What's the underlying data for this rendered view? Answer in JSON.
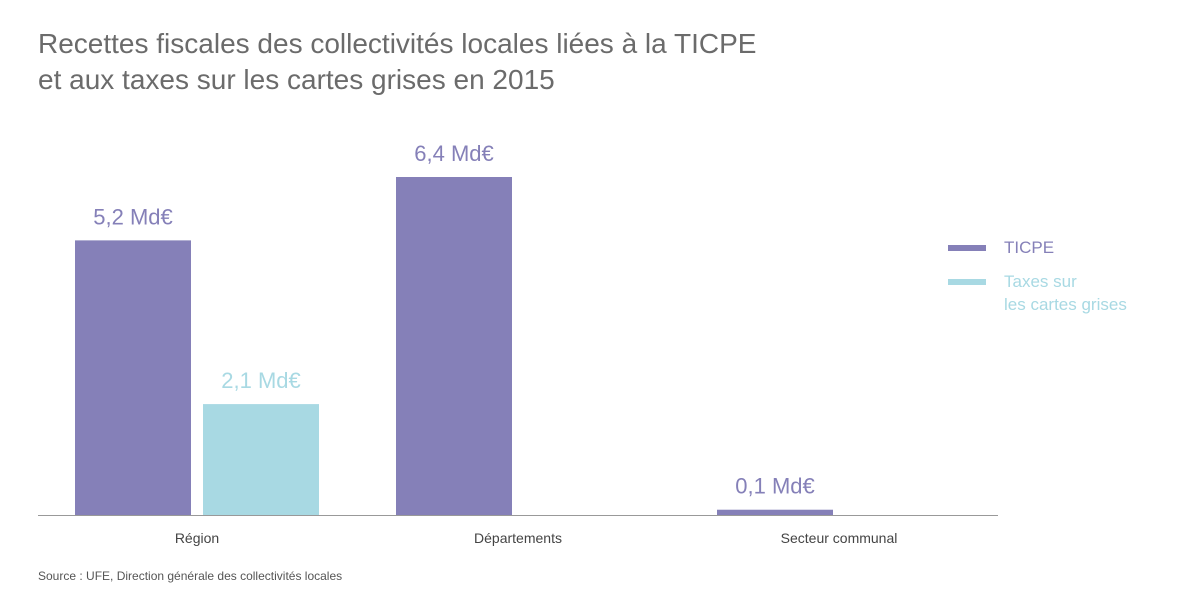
{
  "title": {
    "line1": "Recettes fiscales des collectivités locales liées à la TICPE",
    "line2": "et aux taxes sur les cartes grises en 2015"
  },
  "source": "Source : UFE, Direction générale des collectivités locales",
  "colors": {
    "ticpe": "#8580b8",
    "cartes_grises": "#a8d9e3",
    "axis": "#999999",
    "category_text": "#444444"
  },
  "legend": [
    {
      "label": "TICPE",
      "color": "#8580b8"
    },
    {
      "label": "Taxes sur\nles cartes grises",
      "color": "#a8d9e3"
    }
  ],
  "chart_data": {
    "type": "bar",
    "title": "Recettes fiscales des collectivités locales liées à la TICPE et aux taxes sur les cartes grises en 2015",
    "categories": [
      "Région",
      "Départements",
      "Secteur communal"
    ],
    "series": [
      {
        "name": "TICPE",
        "values": [
          5.2,
          6.4,
          0.1
        ],
        "labels": [
          "5,2 Md€",
          "6,4 Md€",
          "0,1 Md€"
        ]
      },
      {
        "name": "Taxes sur les cartes grises",
        "values": [
          2.1,
          null,
          null
        ],
        "labels": [
          "2,1 Md€",
          null,
          null
        ]
      }
    ],
    "unit": "Md€",
    "ylim": [
      0,
      6.4
    ],
    "grid": false,
    "legend_position": "right"
  }
}
